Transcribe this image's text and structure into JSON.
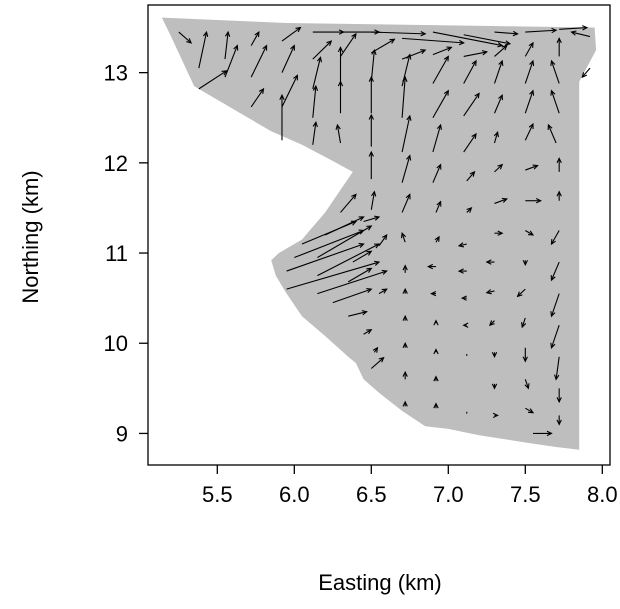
{
  "chart_data": {
    "type": "quiver",
    "title": "",
    "xlabel": "Easting (km)",
    "ylabel": "Northing (km)",
    "xlim": [
      5.05,
      8.05
    ],
    "ylim": [
      8.65,
      13.75
    ],
    "xticks": [
      5.5,
      6.0,
      6.5,
      7.0,
      7.5,
      8.0
    ],
    "xtick_labels": [
      "5.5",
      "6.0",
      "6.5",
      "7.0",
      "7.5",
      "8.0"
    ],
    "yticks": [
      9,
      10,
      11,
      12,
      13
    ],
    "ytick_labels": [
      "9",
      "10",
      "11",
      "12",
      "13"
    ],
    "region_color": "#bebebe",
    "region_boundary": [
      [
        5.14,
        13.61
      ],
      [
        5.95,
        13.55
      ],
      [
        7.95,
        13.5
      ],
      [
        7.96,
        13.25
      ],
      [
        7.85,
        12.9
      ],
      [
        7.85,
        8.82
      ],
      [
        7.7,
        8.85
      ],
      [
        7.5,
        8.9
      ],
      [
        7.2,
        8.98
      ],
      [
        7.0,
        9.05
      ],
      [
        6.85,
        9.08
      ],
      [
        6.7,
        9.25
      ],
      [
        6.55,
        9.45
      ],
      [
        6.45,
        9.6
      ],
      [
        6.4,
        9.78
      ],
      [
        6.35,
        9.85
      ],
      [
        6.2,
        10.08
      ],
      [
        6.05,
        10.3
      ],
      [
        5.95,
        10.55
      ],
      [
        5.88,
        10.75
      ],
      [
        5.85,
        10.92
      ],
      [
        5.9,
        11.0
      ],
      [
        6.05,
        11.15
      ],
      [
        6.2,
        11.45
      ],
      [
        6.3,
        11.7
      ],
      [
        6.38,
        11.9
      ],
      [
        6.25,
        12.02
      ],
      [
        6.05,
        12.2
      ],
      [
        5.85,
        12.35
      ],
      [
        5.65,
        12.55
      ],
      [
        5.45,
        12.75
      ],
      [
        5.35,
        12.85
      ],
      [
        5.2,
        13.4
      ],
      [
        5.14,
        13.61
      ]
    ],
    "vectors": [
      {
        "x": 5.25,
        "y": 13.45,
        "u": 0.08,
        "v": -0.12
      },
      {
        "x": 5.38,
        "y": 13.05,
        "u": 0.05,
        "v": 0.4
      },
      {
        "x": 5.38,
        "y": 12.82,
        "u": 0.18,
        "v": 0.2
      },
      {
        "x": 5.55,
        "y": 13.15,
        "u": 0.02,
        "v": 0.3
      },
      {
        "x": 5.55,
        "y": 12.95,
        "u": 0.08,
        "v": 0.35
      },
      {
        "x": 5.72,
        "y": 13.3,
        "u": 0.05,
        "v": 0.15
      },
      {
        "x": 5.72,
        "y": 12.95,
        "u": 0.1,
        "v": 0.35
      },
      {
        "x": 5.72,
        "y": 12.62,
        "u": 0.08,
        "v": 0.2
      },
      {
        "x": 5.92,
        "y": 13.35,
        "u": 0.12,
        "v": 0.15
      },
      {
        "x": 5.92,
        "y": 13.0,
        "u": 0.08,
        "v": 0.3
      },
      {
        "x": 5.92,
        "y": 12.62,
        "u": 0.1,
        "v": 0.35
      },
      {
        "x": 5.92,
        "y": 12.25,
        "u": 0.0,
        "v": 0.5
      },
      {
        "x": 6.12,
        "y": 13.45,
        "u": 0.2,
        "v": 0.0
      },
      {
        "x": 6.12,
        "y": 13.15,
        "u": 0.12,
        "v": 0.2
      },
      {
        "x": 6.12,
        "y": 12.82,
        "u": 0.05,
        "v": 0.35
      },
      {
        "x": 6.12,
        "y": 12.5,
        "u": 0.02,
        "v": 0.35
      },
      {
        "x": 6.12,
        "y": 12.2,
        "u": 0.02,
        "v": 0.25
      },
      {
        "x": 6.3,
        "y": 13.45,
        "u": 0.25,
        "v": 0.0
      },
      {
        "x": 6.3,
        "y": 13.18,
        "u": 0.1,
        "v": 0.25
      },
      {
        "x": 6.3,
        "y": 12.88,
        "u": 0.0,
        "v": 0.4
      },
      {
        "x": 6.3,
        "y": 12.55,
        "u": 0.0,
        "v": 0.35
      },
      {
        "x": 6.3,
        "y": 12.22,
        "u": -0.02,
        "v": 0.2
      },
      {
        "x": 6.5,
        "y": 13.45,
        "u": 0.35,
        "v": -0.02
      },
      {
        "x": 6.5,
        "y": 13.22,
        "u": 0.15,
        "v": 0.15
      },
      {
        "x": 6.5,
        "y": 12.9,
        "u": 0.02,
        "v": 0.35
      },
      {
        "x": 6.5,
        "y": 12.55,
        "u": 0.0,
        "v": 0.4
      },
      {
        "x": 6.5,
        "y": 12.18,
        "u": 0.0,
        "v": 0.35
      },
      {
        "x": 6.5,
        "y": 11.82,
        "u": 0.0,
        "v": 0.3
      },
      {
        "x": 6.5,
        "y": 11.48,
        "u": 0.02,
        "v": 0.2
      },
      {
        "x": 6.7,
        "y": 13.38,
        "u": 0.4,
        "v": -0.05
      },
      {
        "x": 6.7,
        "y": 13.15,
        "u": 0.15,
        "v": 0.1
      },
      {
        "x": 6.7,
        "y": 12.85,
        "u": 0.05,
        "v": 0.35
      },
      {
        "x": 6.7,
        "y": 12.5,
        "u": 0.02,
        "v": 0.45
      },
      {
        "x": 6.7,
        "y": 12.12,
        "u": 0.05,
        "v": 0.4
      },
      {
        "x": 6.7,
        "y": 11.78,
        "u": 0.05,
        "v": 0.3
      },
      {
        "x": 6.7,
        "y": 11.45,
        "u": 0.05,
        "v": 0.2
      },
      {
        "x": 6.72,
        "y": 11.12,
        "u": -0.02,
        "v": 0.1
      },
      {
        "x": 6.9,
        "y": 13.45,
        "u": 0.45,
        "v": -0.15
      },
      {
        "x": 6.9,
        "y": 13.2,
        "u": 0.12,
        "v": 0.08
      },
      {
        "x": 6.9,
        "y": 12.88,
        "u": 0.1,
        "v": 0.3
      },
      {
        "x": 6.9,
        "y": 12.5,
        "u": 0.1,
        "v": 0.3
      },
      {
        "x": 6.9,
        "y": 12.12,
        "u": 0.05,
        "v": 0.3
      },
      {
        "x": 6.9,
        "y": 11.78,
        "u": 0.05,
        "v": 0.2
      },
      {
        "x": 6.92,
        "y": 11.45,
        "u": 0.03,
        "v": 0.12
      },
      {
        "x": 6.92,
        "y": 11.12,
        "u": 0.02,
        "v": 0.06
      },
      {
        "x": 7.1,
        "y": 13.42,
        "u": 0.3,
        "v": -0.1
      },
      {
        "x": 7.1,
        "y": 13.18,
        "u": 0.15,
        "v": 0.05
      },
      {
        "x": 7.1,
        "y": 12.88,
        "u": 0.08,
        "v": 0.25
      },
      {
        "x": 7.1,
        "y": 12.52,
        "u": 0.1,
        "v": 0.25
      },
      {
        "x": 7.1,
        "y": 12.12,
        "u": 0.08,
        "v": 0.2
      },
      {
        "x": 7.12,
        "y": 11.8,
        "u": 0.05,
        "v": 0.1
      },
      {
        "x": 7.12,
        "y": 11.45,
        "u": 0.03,
        "v": 0.05
      },
      {
        "x": 7.3,
        "y": 13.45,
        "u": 0.15,
        "v": -0.02
      },
      {
        "x": 7.3,
        "y": 13.18,
        "u": 0.08,
        "v": 0.12
      },
      {
        "x": 7.3,
        "y": 12.88,
        "u": 0.05,
        "v": 0.25
      },
      {
        "x": 7.3,
        "y": 12.55,
        "u": 0.05,
        "v": 0.2
      },
      {
        "x": 7.3,
        "y": 12.22,
        "u": 0.02,
        "v": 0.12
      },
      {
        "x": 7.5,
        "y": 13.45,
        "u": 0.2,
        "v": 0.02
      },
      {
        "x": 7.5,
        "y": 13.18,
        "u": 0.05,
        "v": 0.15
      },
      {
        "x": 7.5,
        "y": 12.88,
        "u": 0.05,
        "v": 0.25
      },
      {
        "x": 7.5,
        "y": 12.55,
        "u": 0.05,
        "v": 0.25
      },
      {
        "x": 7.5,
        "y": 12.25,
        "u": 0.05,
        "v": 0.18
      },
      {
        "x": 7.72,
        "y": 13.48,
        "u": 0.18,
        "v": 0.02
      },
      {
        "x": 7.72,
        "y": 13.18,
        "u": 0.0,
        "v": 0.2
      },
      {
        "x": 7.72,
        "y": 12.88,
        "u": -0.05,
        "v": 0.25
      },
      {
        "x": 7.72,
        "y": 12.55,
        "u": -0.05,
        "v": 0.25
      },
      {
        "x": 7.92,
        "y": 13.4,
        "u": -0.12,
        "v": 0.05
      },
      {
        "x": 7.92,
        "y": 13.05,
        "u": -0.05,
        "v": -0.1
      },
      {
        "x": 5.95,
        "y": 10.6,
        "u": 0.6,
        "v": 0.3
      },
      {
        "x": 5.95,
        "y": 10.8,
        "u": 0.5,
        "v": 0.3
      },
      {
        "x": 6.0,
        "y": 10.95,
        "u": 0.45,
        "v": 0.3
      },
      {
        "x": 6.05,
        "y": 11.1,
        "u": 0.35,
        "v": 0.25
      },
      {
        "x": 6.15,
        "y": 10.55,
        "u": 0.45,
        "v": 0.25
      },
      {
        "x": 6.15,
        "y": 10.75,
        "u": 0.4,
        "v": 0.35
      },
      {
        "x": 6.15,
        "y": 10.95,
        "u": 0.35,
        "v": 0.35
      },
      {
        "x": 6.2,
        "y": 11.2,
        "u": 0.25,
        "v": 0.2
      },
      {
        "x": 6.3,
        "y": 11.45,
        "u": 0.1,
        "v": 0.2
      },
      {
        "x": 6.25,
        "y": 10.45,
        "u": 0.25,
        "v": 0.15
      },
      {
        "x": 6.35,
        "y": 10.68,
        "u": 0.15,
        "v": 0.15
      },
      {
        "x": 6.38,
        "y": 10.9,
        "u": 0.12,
        "v": 0.12
      },
      {
        "x": 6.45,
        "y": 11.35,
        "u": 0.1,
        "v": 0.05
      },
      {
        "x": 6.55,
        "y": 11.08,
        "u": 0.05,
        "v": 0.12
      },
      {
        "x": 6.35,
        "y": 10.3,
        "u": 0.12,
        "v": 0.05
      },
      {
        "x": 6.45,
        "y": 10.1,
        "u": 0.05,
        "v": 0.05
      },
      {
        "x": 6.5,
        "y": 9.72,
        "u": 0.08,
        "v": 0.12
      },
      {
        "x": 6.52,
        "y": 9.9,
        "u": 0.02,
        "v": 0.05
      },
      {
        "x": 6.55,
        "y": 10.55,
        "u": 0.05,
        "v": 0.05
      },
      {
        "x": 6.72,
        "y": 10.78,
        "u": 0.0,
        "v": 0.08
      },
      {
        "x": 6.72,
        "y": 10.55,
        "u": 0.0,
        "v": 0.05
      },
      {
        "x": 6.72,
        "y": 10.25,
        "u": 0.0,
        "v": 0.05
      },
      {
        "x": 6.72,
        "y": 9.95,
        "u": 0.0,
        "v": 0.05
      },
      {
        "x": 6.72,
        "y": 9.6,
        "u": 0.0,
        "v": 0.08
      },
      {
        "x": 6.72,
        "y": 9.3,
        "u": 0.0,
        "v": 0.05
      },
      {
        "x": 6.92,
        "y": 10.85,
        "u": -0.05,
        "v": 0.0
      },
      {
        "x": 6.92,
        "y": 10.55,
        "u": -0.03,
        "v": 0.0
      },
      {
        "x": 6.92,
        "y": 10.22,
        "u": 0.0,
        "v": 0.03
      },
      {
        "x": 6.92,
        "y": 9.9,
        "u": 0.0,
        "v": 0.03
      },
      {
        "x": 6.92,
        "y": 9.58,
        "u": 0.0,
        "v": 0.05
      },
      {
        "x": 6.92,
        "y": 9.28,
        "u": 0.0,
        "v": 0.05
      },
      {
        "x": 7.12,
        "y": 11.1,
        "u": -0.05,
        "v": -0.02
      },
      {
        "x": 7.12,
        "y": 10.8,
        "u": -0.05,
        "v": 0.0
      },
      {
        "x": 7.12,
        "y": 10.5,
        "u": -0.03,
        "v": 0.0
      },
      {
        "x": 7.12,
        "y": 10.2,
        "u": -0.02,
        "v": 0.0
      },
      {
        "x": 7.12,
        "y": 9.88,
        "u": 0.0,
        "v": -0.02
      },
      {
        "x": 7.12,
        "y": 9.55,
        "u": 0.0,
        "v": 0.0
      },
      {
        "x": 7.12,
        "y": 9.22,
        "u": 0.0,
        "v": 0.02
      },
      {
        "x": 7.3,
        "y": 11.9,
        "u": 0.05,
        "v": 0.08
      },
      {
        "x": 7.3,
        "y": 11.55,
        "u": 0.08,
        "v": 0.05
      },
      {
        "x": 7.3,
        "y": 11.22,
        "u": 0.05,
        "v": 0.0
      },
      {
        "x": 7.3,
        "y": 10.9,
        "u": -0.05,
        "v": 0.0
      },
      {
        "x": 7.3,
        "y": 10.58,
        "u": -0.05,
        "v": -0.02
      },
      {
        "x": 7.3,
        "y": 10.25,
        "u": -0.03,
        "v": -0.05
      },
      {
        "x": 7.3,
        "y": 9.9,
        "u": 0.0,
        "v": -0.05
      },
      {
        "x": 7.3,
        "y": 9.55,
        "u": 0.0,
        "v": -0.05
      },
      {
        "x": 7.3,
        "y": 9.2,
        "u": 0.02,
        "v": 0.0
      },
      {
        "x": 7.5,
        "y": 11.92,
        "u": 0.08,
        "v": 0.05
      },
      {
        "x": 7.5,
        "y": 11.58,
        "u": 0.1,
        "v": 0.0
      },
      {
        "x": 7.5,
        "y": 11.25,
        "u": 0.05,
        "v": -0.05
      },
      {
        "x": 7.5,
        "y": 10.92,
        "u": 0.0,
        "v": -0.05
      },
      {
        "x": 7.5,
        "y": 10.6,
        "u": -0.05,
        "v": -0.08
      },
      {
        "x": 7.5,
        "y": 10.28,
        "u": -0.02,
        "v": -0.1
      },
      {
        "x": 7.5,
        "y": 9.95,
        "u": 0.0,
        "v": -0.15
      },
      {
        "x": 7.5,
        "y": 9.6,
        "u": 0.02,
        "v": -0.1
      },
      {
        "x": 7.5,
        "y": 9.28,
        "u": 0.05,
        "v": -0.05
      },
      {
        "x": 7.55,
        "y": 9.0,
        "u": 0.12,
        "v": 0.0
      },
      {
        "x": 7.7,
        "y": 12.22,
        "u": -0.05,
        "v": 0.2
      },
      {
        "x": 7.72,
        "y": 11.9,
        "u": 0.0,
        "v": 0.15
      },
      {
        "x": 7.72,
        "y": 11.58,
        "u": 0.0,
        "v": 0.1
      },
      {
        "x": 7.72,
        "y": 11.25,
        "u": -0.05,
        "v": -0.15
      },
      {
        "x": 7.72,
        "y": 10.9,
        "u": -0.05,
        "v": -0.2
      },
      {
        "x": 7.72,
        "y": 10.55,
        "u": -0.05,
        "v": -0.25
      },
      {
        "x": 7.72,
        "y": 10.2,
        "u": -0.05,
        "v": -0.25
      },
      {
        "x": 7.72,
        "y": 9.85,
        "u": -0.02,
        "v": -0.25
      },
      {
        "x": 7.72,
        "y": 9.5,
        "u": 0.0,
        "v": -0.15
      },
      {
        "x": 7.72,
        "y": 9.2,
        "u": 0.0,
        "v": -0.1
      }
    ]
  }
}
